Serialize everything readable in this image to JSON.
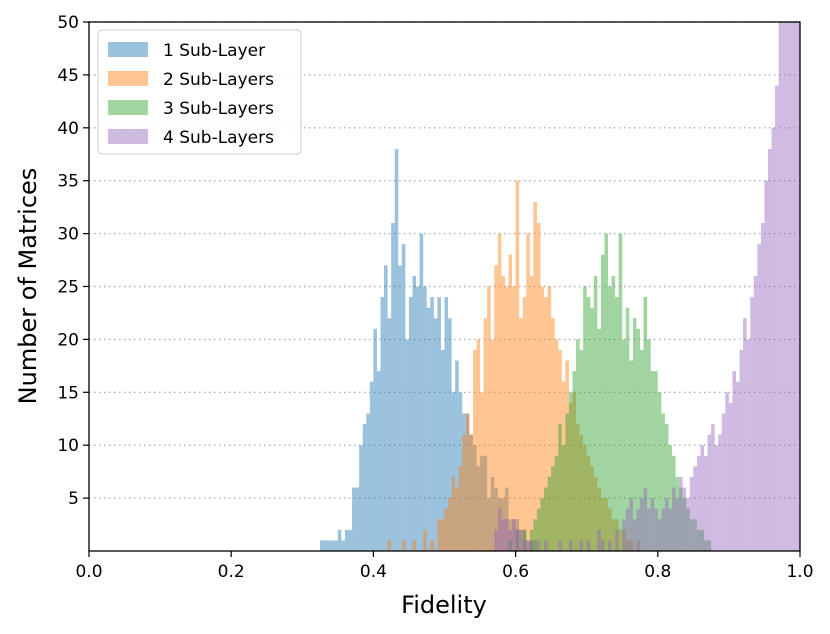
{
  "chart_data": {
    "type": "bar",
    "subtype": "overlapping-histogram",
    "xlabel": "Fidelity",
    "ylabel": "Number of Matrices",
    "xlim": [
      0.0,
      1.0
    ],
    "ylim": [
      0,
      50
    ],
    "xticks": [
      0.0,
      0.2,
      0.4,
      0.6,
      0.8,
      1.0
    ],
    "xtick_labels": [
      "0.0",
      "0.2",
      "0.4",
      "0.6",
      "0.8",
      "1.0"
    ],
    "yticks": [
      5,
      10,
      15,
      20,
      25,
      30,
      35,
      40,
      45,
      50
    ],
    "ytick_labels": [
      "5",
      "10",
      "15",
      "20",
      "25",
      "30",
      "35",
      "40",
      "45",
      "50"
    ],
    "grid": "horizontal-dotted",
    "legend_position": "top-left",
    "bar_alpha": 0.45,
    "bin_width": 0.005,
    "series": [
      {
        "name": "1 Sub-Layer",
        "color": "#1f77b4",
        "bins": [
          [
            0.325,
            1
          ],
          [
            0.33,
            1
          ],
          [
            0.335,
            1
          ],
          [
            0.34,
            1
          ],
          [
            0.345,
            1
          ],
          [
            0.35,
            2
          ],
          [
            0.355,
            1
          ],
          [
            0.36,
            2
          ],
          [
            0.365,
            2
          ],
          [
            0.37,
            6
          ],
          [
            0.375,
            6
          ],
          [
            0.38,
            10
          ],
          [
            0.385,
            12
          ],
          [
            0.39,
            13
          ],
          [
            0.395,
            16
          ],
          [
            0.4,
            21
          ],
          [
            0.405,
            17
          ],
          [
            0.41,
            24
          ],
          [
            0.415,
            27
          ],
          [
            0.42,
            22
          ],
          [
            0.425,
            31
          ],
          [
            0.43,
            38
          ],
          [
            0.435,
            27
          ],
          [
            0.44,
            29
          ],
          [
            0.445,
            20
          ],
          [
            0.45,
            24
          ],
          [
            0.455,
            26
          ],
          [
            0.46,
            25
          ],
          [
            0.465,
            30
          ],
          [
            0.47,
            25
          ],
          [
            0.475,
            23
          ],
          [
            0.48,
            24
          ],
          [
            0.485,
            22
          ],
          [
            0.49,
            24
          ],
          [
            0.495,
            19
          ],
          [
            0.5,
            24
          ],
          [
            0.505,
            22
          ],
          [
            0.51,
            15
          ],
          [
            0.515,
            18
          ],
          [
            0.52,
            15
          ],
          [
            0.525,
            13
          ],
          [
            0.53,
            13
          ],
          [
            0.535,
            11
          ],
          [
            0.54,
            10
          ],
          [
            0.545,
            8
          ],
          [
            0.55,
            9
          ],
          [
            0.555,
            9
          ],
          [
            0.56,
            5
          ],
          [
            0.565,
            7
          ],
          [
            0.57,
            6
          ],
          [
            0.575,
            5
          ],
          [
            0.58,
            5
          ],
          [
            0.585,
            6
          ],
          [
            0.59,
            3
          ],
          [
            0.595,
            3
          ],
          [
            0.6,
            3
          ],
          [
            0.605,
            2
          ],
          [
            0.61,
            2
          ],
          [
            0.615,
            1
          ],
          [
            0.62,
            1
          ],
          [
            0.625,
            1
          ]
        ]
      },
      {
        "name": "2 Sub-Layers",
        "color": "#ff7f0e",
        "bins": [
          [
            0.42,
            1
          ],
          [
            0.44,
            1
          ],
          [
            0.455,
            1
          ],
          [
            0.47,
            2
          ],
          [
            0.48,
            1
          ],
          [
            0.49,
            3
          ],
          [
            0.495,
            3
          ],
          [
            0.5,
            4
          ],
          [
            0.505,
            5
          ],
          [
            0.51,
            7
          ],
          [
            0.515,
            6
          ],
          [
            0.52,
            8
          ],
          [
            0.525,
            11
          ],
          [
            0.53,
            13
          ],
          [
            0.535,
            11
          ],
          [
            0.54,
            19
          ],
          [
            0.545,
            20
          ],
          [
            0.55,
            15
          ],
          [
            0.555,
            22
          ],
          [
            0.56,
            25
          ],
          [
            0.565,
            20
          ],
          [
            0.57,
            27
          ],
          [
            0.575,
            30
          ],
          [
            0.58,
            26
          ],
          [
            0.585,
            25
          ],
          [
            0.59,
            28
          ],
          [
            0.595,
            25
          ],
          [
            0.6,
            35
          ],
          [
            0.605,
            22
          ],
          [
            0.61,
            24
          ],
          [
            0.615,
            30
          ],
          [
            0.62,
            26
          ],
          [
            0.625,
            33
          ],
          [
            0.63,
            31
          ],
          [
            0.635,
            25
          ],
          [
            0.64,
            24
          ],
          [
            0.645,
            25
          ],
          [
            0.65,
            22
          ],
          [
            0.655,
            20
          ],
          [
            0.66,
            19
          ],
          [
            0.665,
            16
          ],
          [
            0.67,
            18
          ],
          [
            0.675,
            14
          ],
          [
            0.68,
            15
          ],
          [
            0.685,
            12
          ],
          [
            0.69,
            11
          ],
          [
            0.695,
            10
          ],
          [
            0.7,
            9
          ],
          [
            0.705,
            8
          ],
          [
            0.71,
            7
          ],
          [
            0.715,
            6
          ],
          [
            0.72,
            5
          ],
          [
            0.725,
            5
          ],
          [
            0.73,
            4
          ],
          [
            0.735,
            3
          ],
          [
            0.74,
            3
          ],
          [
            0.745,
            2
          ],
          [
            0.75,
            2
          ],
          [
            0.755,
            1
          ],
          [
            0.76,
            1
          ],
          [
            0.77,
            1
          ]
        ]
      },
      {
        "name": "3 Sub-Layers",
        "color": "#2ca02c",
        "bins": [
          [
            0.59,
            1
          ],
          [
            0.6,
            2
          ],
          [
            0.61,
            2
          ],
          [
            0.62,
            2
          ],
          [
            0.625,
            3
          ],
          [
            0.63,
            4
          ],
          [
            0.635,
            5
          ],
          [
            0.64,
            6
          ],
          [
            0.645,
            7
          ],
          [
            0.65,
            8
          ],
          [
            0.655,
            9
          ],
          [
            0.66,
            12
          ],
          [
            0.665,
            10
          ],
          [
            0.67,
            13
          ],
          [
            0.675,
            15
          ],
          [
            0.68,
            17
          ],
          [
            0.685,
            20
          ],
          [
            0.69,
            19
          ],
          [
            0.695,
            25
          ],
          [
            0.7,
            24
          ],
          [
            0.705,
            23
          ],
          [
            0.71,
            26
          ],
          [
            0.715,
            21
          ],
          [
            0.72,
            28
          ],
          [
            0.725,
            30
          ],
          [
            0.73,
            25
          ],
          [
            0.735,
            26
          ],
          [
            0.74,
            24
          ],
          [
            0.745,
            30
          ],
          [
            0.75,
            20
          ],
          [
            0.755,
            23
          ],
          [
            0.76,
            18
          ],
          [
            0.765,
            22
          ],
          [
            0.77,
            21
          ],
          [
            0.775,
            19
          ],
          [
            0.78,
            24
          ],
          [
            0.785,
            20
          ],
          [
            0.79,
            17
          ],
          [
            0.795,
            17
          ],
          [
            0.8,
            15
          ],
          [
            0.805,
            13
          ],
          [
            0.81,
            12
          ],
          [
            0.815,
            10
          ],
          [
            0.82,
            9
          ],
          [
            0.825,
            7
          ],
          [
            0.83,
            6
          ],
          [
            0.835,
            5
          ],
          [
            0.84,
            4
          ],
          [
            0.845,
            3
          ],
          [
            0.85,
            3
          ],
          [
            0.855,
            2
          ],
          [
            0.86,
            2
          ],
          [
            0.865,
            1
          ],
          [
            0.87,
            1
          ]
        ]
      },
      {
        "name": "4 Sub-Layers",
        "color": "#9467bd",
        "bins": [
          [
            0.57,
            2
          ],
          [
            0.575,
            4
          ],
          [
            0.58,
            3
          ],
          [
            0.585,
            3
          ],
          [
            0.59,
            2
          ],
          [
            0.595,
            3
          ],
          [
            0.6,
            2
          ],
          [
            0.605,
            2
          ],
          [
            0.61,
            1
          ],
          [
            0.615,
            1
          ],
          [
            0.62,
            1
          ],
          [
            0.63,
            1
          ],
          [
            0.64,
            1
          ],
          [
            0.66,
            1
          ],
          [
            0.675,
            1
          ],
          [
            0.69,
            1
          ],
          [
            0.7,
            1
          ],
          [
            0.715,
            2
          ],
          [
            0.72,
            1
          ],
          [
            0.73,
            1
          ],
          [
            0.74,
            2
          ],
          [
            0.75,
            3
          ],
          [
            0.755,
            4
          ],
          [
            0.76,
            5
          ],
          [
            0.765,
            3
          ],
          [
            0.77,
            4
          ],
          [
            0.775,
            5
          ],
          [
            0.78,
            6
          ],
          [
            0.785,
            4
          ],
          [
            0.79,
            5
          ],
          [
            0.795,
            4
          ],
          [
            0.8,
            3
          ],
          [
            0.805,
            4
          ],
          [
            0.81,
            5
          ],
          [
            0.815,
            4
          ],
          [
            0.82,
            6
          ],
          [
            0.825,
            5
          ],
          [
            0.83,
            7
          ],
          [
            0.835,
            6
          ],
          [
            0.84,
            5
          ],
          [
            0.845,
            7
          ],
          [
            0.85,
            8
          ],
          [
            0.855,
            9
          ],
          [
            0.86,
            10
          ],
          [
            0.865,
            9
          ],
          [
            0.87,
            11
          ],
          [
            0.875,
            12
          ],
          [
            0.88,
            10
          ],
          [
            0.885,
            11
          ],
          [
            0.89,
            13
          ],
          [
            0.895,
            15
          ],
          [
            0.9,
            14
          ],
          [
            0.905,
            17
          ],
          [
            0.91,
            16
          ],
          [
            0.915,
            19
          ],
          [
            0.92,
            22
          ],
          [
            0.925,
            20
          ],
          [
            0.93,
            24
          ],
          [
            0.935,
            26
          ],
          [
            0.94,
            29
          ],
          [
            0.945,
            31
          ],
          [
            0.95,
            35
          ],
          [
            0.955,
            38
          ],
          [
            0.96,
            40
          ],
          [
            0.965,
            44
          ],
          [
            0.97,
            50
          ],
          [
            0.975,
            50
          ],
          [
            0.98,
            50
          ],
          [
            0.985,
            50
          ],
          [
            0.99,
            50
          ],
          [
            0.995,
            50
          ]
        ]
      }
    ]
  }
}
